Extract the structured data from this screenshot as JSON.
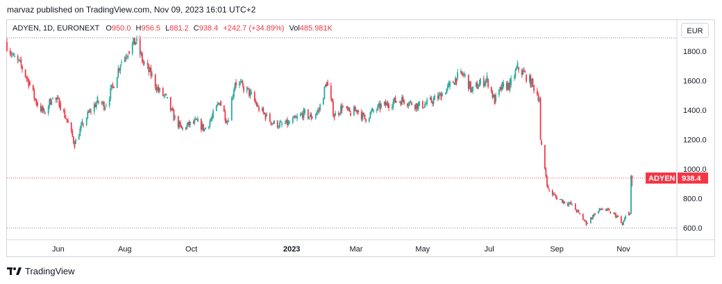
{
  "header": {
    "published_line": "marvaz published on TradingView.com, Nov 09, 2023 16:01 UTC+2"
  },
  "legend": {
    "symbol": "ADYEN, 1D, EURONEXT",
    "open_label": "O",
    "open": "950.0",
    "high_label": "H",
    "high": "956.5",
    "low_label": "L",
    "low": "881.2",
    "close_label": "C",
    "close": "938.4",
    "change": "+242.7 (+34.89%)",
    "vol_label": "Vol",
    "vol": "485.981K"
  },
  "currency_button": "EUR",
  "price_badge": {
    "symbol": "ADYEN",
    "price": "938.4"
  },
  "footer": {
    "brand": "TradingView"
  },
  "colors": {
    "up": "#26a69a",
    "down": "#f23645",
    "grid": "#d1d4dc",
    "text": "#131722"
  },
  "chart_data": {
    "type": "candlestick",
    "y_ticks": [
      "600.0",
      "800.0",
      "1000.0",
      "1200.0",
      "1400.0",
      "1600.0",
      "1800.0"
    ],
    "y_range": [
      520,
      1950
    ],
    "x_ticks": [
      {
        "label": "Jun",
        "date": "2022-06-01",
        "bold": false
      },
      {
        "label": "Aug",
        "date": "2022-08-01",
        "bold": false
      },
      {
        "label": "Oct",
        "date": "2022-10-01",
        "bold": false
      },
      {
        "label": "2023",
        "date": "2023-01-01",
        "bold": true
      },
      {
        "label": "Mar",
        "date": "2023-03-01",
        "bold": false
      },
      {
        "label": "May",
        "date": "2023-05-01",
        "bold": false
      },
      {
        "label": "Jul",
        "date": "2023-07-01",
        "bold": false
      },
      {
        "label": "Sep",
        "date": "2023-09-01",
        "bold": false
      },
      {
        "label": "Nov",
        "date": "2023-11-01",
        "bold": false
      }
    ],
    "x_range": [
      "2022-04-15",
      "2023-12-20"
    ],
    "dotted_levels": [
      1890,
      938.4,
      600
    ],
    "current_price": 938.4,
    "closes": [
      [
        "2022-04-15",
        1860
      ],
      [
        "2022-04-22",
        1760
      ],
      [
        "2022-04-29",
        1700
      ],
      [
        "2022-05-06",
        1590
      ],
      [
        "2022-05-13",
        1450
      ],
      [
        "2022-05-20",
        1380
      ],
      [
        "2022-05-27",
        1480
      ],
      [
        "2022-06-03",
        1450
      ],
      [
        "2022-06-10",
        1330
      ],
      [
        "2022-06-17",
        1170
      ],
      [
        "2022-06-24",
        1300
      ],
      [
        "2022-07-01",
        1390
      ],
      [
        "2022-07-08",
        1460
      ],
      [
        "2022-07-15",
        1430
      ],
      [
        "2022-07-22",
        1560
      ],
      [
        "2022-07-29",
        1720
      ],
      [
        "2022-08-05",
        1800
      ],
      [
        "2022-08-12",
        1870
      ],
      [
        "2022-08-19",
        1720
      ],
      [
        "2022-08-26",
        1640
      ],
      [
        "2022-09-02",
        1530
      ],
      [
        "2022-09-09",
        1480
      ],
      [
        "2022-09-16",
        1350
      ],
      [
        "2022-09-23",
        1270
      ],
      [
        "2022-09-30",
        1300
      ],
      [
        "2022-10-07",
        1320
      ],
      [
        "2022-10-14",
        1270
      ],
      [
        "2022-10-21",
        1350
      ],
      [
        "2022-10-28",
        1460
      ],
      [
        "2022-11-04",
        1320
      ],
      [
        "2022-11-11",
        1590
      ],
      [
        "2022-11-18",
        1560
      ],
      [
        "2022-11-25",
        1510
      ],
      [
        "2022-12-02",
        1420
      ],
      [
        "2022-12-09",
        1360
      ],
      [
        "2022-12-16",
        1310
      ],
      [
        "2022-12-23",
        1300
      ],
      [
        "2022-12-30",
        1310
      ],
      [
        "2023-01-06",
        1340
      ],
      [
        "2023-01-13",
        1380
      ],
      [
        "2023-01-20",
        1350
      ],
      [
        "2023-01-27",
        1400
      ],
      [
        "2023-02-03",
        1590
      ],
      [
        "2023-02-10",
        1360
      ],
      [
        "2023-02-17",
        1420
      ],
      [
        "2023-02-24",
        1380
      ],
      [
        "2023-03-03",
        1400
      ],
      [
        "2023-03-10",
        1340
      ],
      [
        "2023-03-17",
        1390
      ],
      [
        "2023-03-24",
        1420
      ],
      [
        "2023-03-31",
        1440
      ],
      [
        "2023-04-07",
        1460
      ],
      [
        "2023-04-14",
        1470
      ],
      [
        "2023-04-21",
        1450
      ],
      [
        "2023-04-28",
        1430
      ],
      [
        "2023-05-05",
        1440
      ],
      [
        "2023-05-12",
        1470
      ],
      [
        "2023-05-19",
        1500
      ],
      [
        "2023-05-26",
        1560
      ],
      [
        "2023-06-02",
        1620
      ],
      [
        "2023-06-09",
        1640
      ],
      [
        "2023-06-16",
        1530
      ],
      [
        "2023-06-23",
        1580
      ],
      [
        "2023-06-30",
        1610
      ],
      [
        "2023-07-07",
        1460
      ],
      [
        "2023-07-14",
        1560
      ],
      [
        "2023-07-21",
        1570
      ],
      [
        "2023-07-28",
        1690
      ],
      [
        "2023-08-04",
        1640
      ],
      [
        "2023-08-11",
        1570
      ],
      [
        "2023-08-17",
        1480
      ],
      [
        "2023-08-18",
        1190
      ],
      [
        "2023-08-25",
        860
      ],
      [
        "2023-09-01",
        810
      ],
      [
        "2023-09-08",
        780
      ],
      [
        "2023-09-15",
        760
      ],
      [
        "2023-09-22",
        700
      ],
      [
        "2023-09-29",
        630
      ],
      [
        "2023-10-06",
        690
      ],
      [
        "2023-10-13",
        730
      ],
      [
        "2023-10-20",
        710
      ],
      [
        "2023-10-27",
        680
      ],
      [
        "2023-11-01",
        620
      ],
      [
        "2023-11-06",
        710
      ],
      [
        "2023-11-08",
        695.7
      ],
      [
        "2023-11-09",
        938.4
      ]
    ]
  }
}
